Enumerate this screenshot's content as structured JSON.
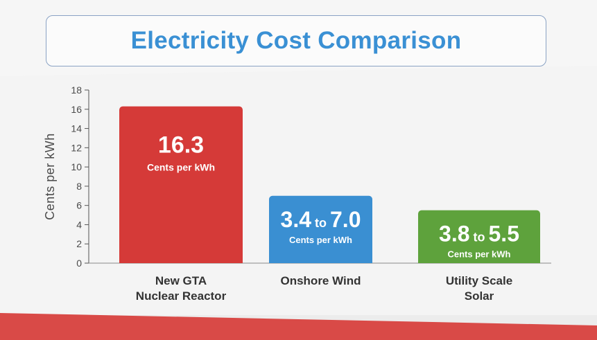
{
  "title": "Electricity Cost Comparison",
  "colors": {
    "reactor": "#d53a38",
    "wind": "#3a8fd2",
    "solar": "#5ea23c",
    "title": "#3a90d4",
    "bottom_stripe": "#d94a47"
  },
  "chart_data": {
    "type": "bar",
    "title": "Electricity Cost Comparison",
    "ylabel": "Cents per kWh",
    "xlabel": "",
    "ylim": [
      0,
      18
    ],
    "yticks": [
      "0",
      "2",
      "4",
      "6",
      "8",
      "10",
      "12",
      "14",
      "16",
      "18"
    ],
    "grid": false,
    "categories": [
      [
        "New GTA",
        "Nuclear Reactor"
      ],
      [
        "Onshore Wind"
      ],
      [
        "Utility Scale",
        "Solar"
      ]
    ],
    "bars": [
      {
        "value": 16.3,
        "low": 16.3,
        "high": 16.3,
        "color": "#d53a38",
        "value_text": [
          "16.3"
        ],
        "unit_text": "Cents per kWh"
      },
      {
        "value": 7.0,
        "low": 3.4,
        "high": 7.0,
        "color": "#3a8fd2",
        "value_text": [
          "3.4",
          " to ",
          "7.0"
        ],
        "unit_text": "Cents per kWh"
      },
      {
        "value": 5.5,
        "low": 3.8,
        "high": 5.5,
        "color": "#5ea23c",
        "value_text": [
          "3.8",
          " to ",
          "5.5"
        ],
        "unit_text": "Cents per kWh"
      }
    ]
  }
}
